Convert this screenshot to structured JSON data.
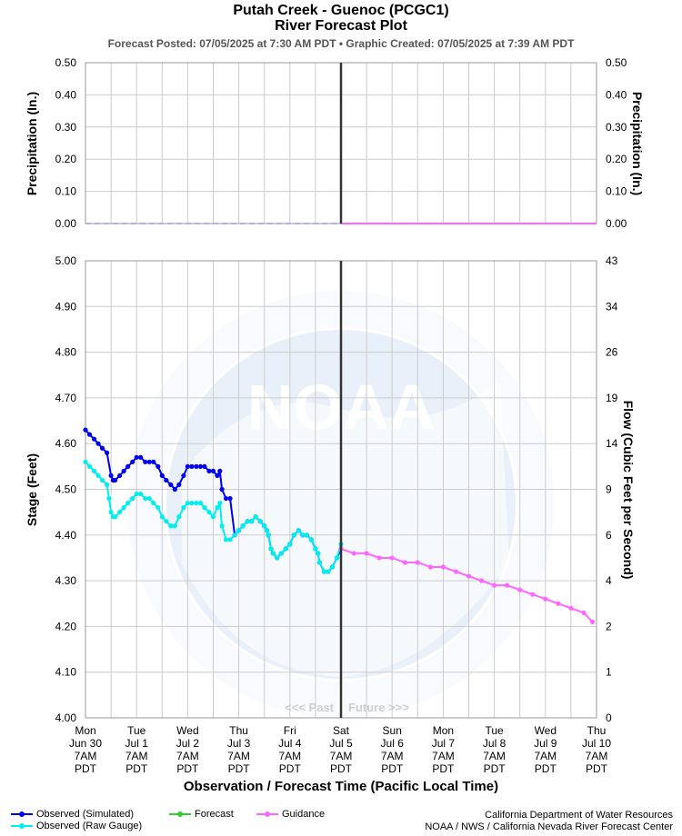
{
  "header": {
    "title_line1": "Putah Creek - Guenoc (PCGC1)",
    "title_line2": "River Forecast Plot",
    "subtitle": "Forecast Posted: 07/05/2025 at 7:30 AM PDT  •  Graphic Created: 07/05/2025 at 7:39 AM PDT"
  },
  "chart_data": [
    {
      "type": "line",
      "title": "Precipitation",
      "ylabel": "Precipitation (In.)",
      "ylabel_right": "Precipitation (In.)",
      "ylim": [
        0,
        0.5
      ],
      "y_ticks": [
        "0.00",
        "0.10",
        "0.20",
        "0.30",
        "0.40",
        "0.50"
      ],
      "grid": true,
      "series": [
        {
          "name": "Observed precipitation",
          "x_days": [
            0,
            5
          ],
          "values": [
            0,
            0
          ],
          "color": "#b0b0f0",
          "dashed": true
        },
        {
          "name": "Guidance precipitation",
          "x_days": [
            5,
            10
          ],
          "values": [
            0,
            0
          ],
          "color": "#ff66ff"
        }
      ]
    },
    {
      "type": "line",
      "title": "Stage",
      "xlabel": "Observation / Forecast Time (Pacific Local Time)",
      "ylabel": "Stage (Feet)",
      "ylabel_right": "Flow (Cubic Feet per Second)",
      "ylim": [
        4.0,
        5.0
      ],
      "y_ticks": [
        "4.00",
        "4.10",
        "4.20",
        "4.30",
        "4.40",
        "4.50",
        "4.60",
        "4.70",
        "4.80",
        "4.90",
        "5.00"
      ],
      "right_tick_labels": [
        "0",
        "1",
        "2",
        "4",
        "6",
        "9",
        "14",
        "19",
        "26",
        "34",
        "43"
      ],
      "x_ticks": [
        {
          "day": "Mon",
          "date": "Jun 30",
          "time": "7AM",
          "tz": "PDT"
        },
        {
          "day": "Tue",
          "date": "Jul 1",
          "time": "7AM",
          "tz": "PDT"
        },
        {
          "day": "Wed",
          "date": "Jul 2",
          "time": "7AM",
          "tz": "PDT"
        },
        {
          "day": "Thu",
          "date": "Jul 3",
          "time": "7AM",
          "tz": "PDT"
        },
        {
          "day": "Fri",
          "date": "Jul 4",
          "time": "7AM",
          "tz": "PDT"
        },
        {
          "day": "Sat",
          "date": "Jul 5",
          "time": "7AM",
          "tz": "PDT"
        },
        {
          "day": "Sun",
          "date": "Jul 6",
          "time": "7AM",
          "tz": "PDT"
        },
        {
          "day": "Mon",
          "date": "Jul 7",
          "time": "7AM",
          "tz": "PDT"
        },
        {
          "day": "Tue",
          "date": "Jul 8",
          "time": "7AM",
          "tz": "PDT"
        },
        {
          "day": "Wed",
          "date": "Jul 9",
          "time": "7AM",
          "tz": "PDT"
        },
        {
          "day": "Thu",
          "date": "Jul 10",
          "time": "7AM",
          "tz": "PDT"
        }
      ],
      "now_day": 5,
      "past_label": "<<< Past",
      "future_label": "Future >>>",
      "series": [
        {
          "name": "Observed (Simulated)",
          "color": "#0000ee",
          "x_days": [
            0,
            0.08,
            0.17,
            0.25,
            0.33,
            0.42,
            0.5,
            0.54,
            0.58,
            0.67,
            0.75,
            0.83,
            0.92,
            1.0,
            1.08,
            1.17,
            1.25,
            1.33,
            1.42,
            1.5,
            1.58,
            1.67,
            1.75,
            1.83,
            1.92,
            2.0,
            2.08,
            2.17,
            2.25,
            2.33,
            2.42,
            2.5,
            2.58,
            2.63,
            2.67,
            2.75,
            2.83,
            2.92,
            3.0,
            3.08,
            3.17,
            3.25,
            3.33,
            3.42,
            3.5,
            3.55,
            3.58,
            3.63,
            3.67,
            3.75,
            3.83,
            3.92,
            4.0,
            4.08,
            4.17,
            4.25,
            4.33,
            4.42,
            4.5,
            4.55,
            4.58,
            4.67,
            4.75,
            4.83,
            4.92,
            5.0
          ],
          "values": [
            4.63,
            4.62,
            4.61,
            4.6,
            4.59,
            4.58,
            4.53,
            4.52,
            4.52,
            4.53,
            4.54,
            4.55,
            4.56,
            4.57,
            4.57,
            4.56,
            4.56,
            4.56,
            4.55,
            4.53,
            4.52,
            4.51,
            4.5,
            4.51,
            4.53,
            4.55,
            4.55,
            4.55,
            4.55,
            4.55,
            4.54,
            4.54,
            4.53,
            4.54,
            4.5,
            4.48,
            4.48,
            4.4,
            4.41,
            4.42,
            4.43,
            4.43,
            4.44,
            4.43,
            4.42,
            4.41,
            4.4,
            4.37,
            4.36,
            4.35,
            4.36,
            4.37,
            4.38,
            4.4,
            4.41,
            4.4,
            4.4,
            4.39,
            4.37,
            4.36,
            4.34,
            4.32,
            4.32,
            4.33,
            4.35,
            4.37
          ]
        },
        {
          "name": "Observed (Raw Gauge)",
          "color": "#00eeee",
          "x_days": [
            0,
            0.08,
            0.17,
            0.25,
            0.33,
            0.42,
            0.46,
            0.5,
            0.54,
            0.58,
            0.67,
            0.75,
            0.83,
            0.92,
            1.0,
            1.08,
            1.17,
            1.25,
            1.33,
            1.42,
            1.5,
            1.58,
            1.67,
            1.75,
            1.83,
            1.92,
            2.0,
            2.08,
            2.17,
            2.25,
            2.33,
            2.42,
            2.5,
            2.58,
            2.63,
            2.67,
            2.75,
            2.83,
            2.92,
            3.0,
            3.08,
            3.17,
            3.25,
            3.33,
            3.42,
            3.5,
            3.55,
            3.58,
            3.63,
            3.67,
            3.75,
            3.83,
            3.92,
            4.0,
            4.08,
            4.17,
            4.25,
            4.33,
            4.42,
            4.5,
            4.55,
            4.58,
            4.67,
            4.75,
            4.83,
            4.92,
            5.0
          ],
          "values": [
            4.56,
            4.55,
            4.54,
            4.53,
            4.52,
            4.51,
            4.48,
            4.45,
            4.44,
            4.44,
            4.45,
            4.46,
            4.47,
            4.48,
            4.49,
            4.49,
            4.48,
            4.48,
            4.47,
            4.46,
            4.44,
            4.43,
            4.42,
            4.42,
            4.44,
            4.46,
            4.47,
            4.47,
            4.47,
            4.47,
            4.46,
            4.45,
            4.44,
            4.46,
            4.47,
            4.42,
            4.39,
            4.39,
            4.4,
            4.41,
            4.42,
            4.43,
            4.43,
            4.44,
            4.43,
            4.42,
            4.41,
            4.4,
            4.37,
            4.36,
            4.35,
            4.36,
            4.37,
            4.38,
            4.4,
            4.41,
            4.4,
            4.4,
            4.39,
            4.37,
            4.36,
            4.34,
            4.32,
            4.32,
            4.33,
            4.35,
            4.38
          ]
        },
        {
          "name": "Forecast",
          "color": "#33cc33",
          "x_days": [],
          "values": []
        },
        {
          "name": "Guidance",
          "color": "#ff66ff",
          "x_days": [
            5.0,
            5.25,
            5.5,
            5.75,
            6.0,
            6.25,
            6.5,
            6.75,
            7.0,
            7.25,
            7.5,
            7.75,
            8.0,
            8.25,
            8.5,
            8.75,
            9.0,
            9.25,
            9.5,
            9.75,
            9.92
          ],
          "values": [
            4.37,
            4.36,
            4.36,
            4.35,
            4.35,
            4.34,
            4.34,
            4.33,
            4.33,
            4.32,
            4.31,
            4.3,
            4.29,
            4.29,
            4.28,
            4.27,
            4.26,
            4.25,
            4.24,
            4.23,
            4.21
          ]
        }
      ]
    }
  ],
  "legend": {
    "observed_simulated": "Observed (Simulated)",
    "observed_raw": "Observed (Raw Gauge)",
    "forecast": "Forecast",
    "guidance": "Guidance"
  },
  "credits": {
    "line1": "California Department of Water Resources",
    "line2": "NOAA / NWS / California Nevada River Forecast Center"
  },
  "colors": {
    "simulated": "#0000ee",
    "raw": "#00eeee",
    "forecast": "#33cc33",
    "guidance": "#ff66ff",
    "now_line": "#333333",
    "grid": "#cccccc"
  }
}
